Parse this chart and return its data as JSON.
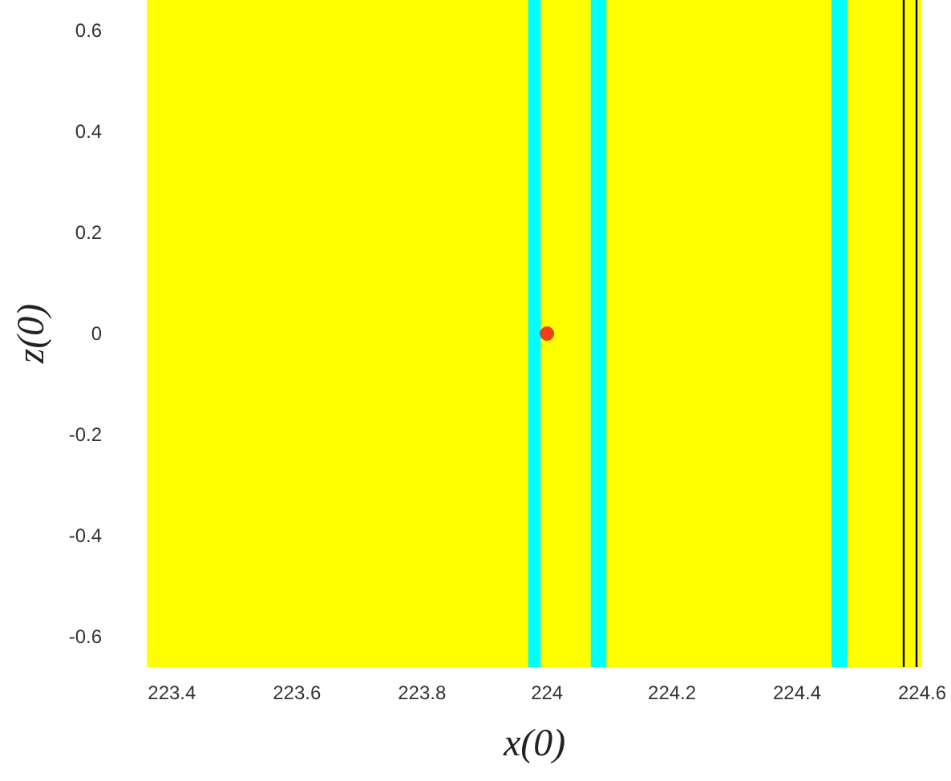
{
  "chart_data": {
    "type": "scatter",
    "xlabel": "x(0)",
    "ylabel": "z(0)",
    "x": [
      224.0
    ],
    "values": [
      0.0
    ],
    "color": "#e8101a",
    "marker": "circle",
    "grid": false,
    "xlim": [
      223.36,
      224.6
    ],
    "xticks": [
      223.4,
      223.6,
      223.8,
      224,
      224.2,
      224.4,
      224.6
    ],
    "ylim": [
      -0.66,
      0.66
    ],
    "yticks": [
      -0.6,
      -0.4,
      -0.2,
      0,
      0.2,
      0.4,
      0.6
    ],
    "bands": [
      {
        "axis": "x",
        "from": 223.36,
        "to": 224.6,
        "color": "#ffff00"
      },
      {
        "axis": "x",
        "from": 223.97,
        "to": 223.99,
        "color": "#00ffff"
      },
      {
        "axis": "x",
        "from": 224.07,
        "to": 224.095,
        "color": "#00ffff"
      },
      {
        "axis": "x",
        "from": 224.455,
        "to": 224.48,
        "color": "#00ffff"
      }
    ],
    "ref_lines": [
      {
        "axis": "x",
        "value": 224.575,
        "color": "#000000",
        "line_style": "solid"
      },
      {
        "axis": "x",
        "value": 224.588,
        "color": "#000000",
        "line_style": "solid"
      }
    ]
  }
}
